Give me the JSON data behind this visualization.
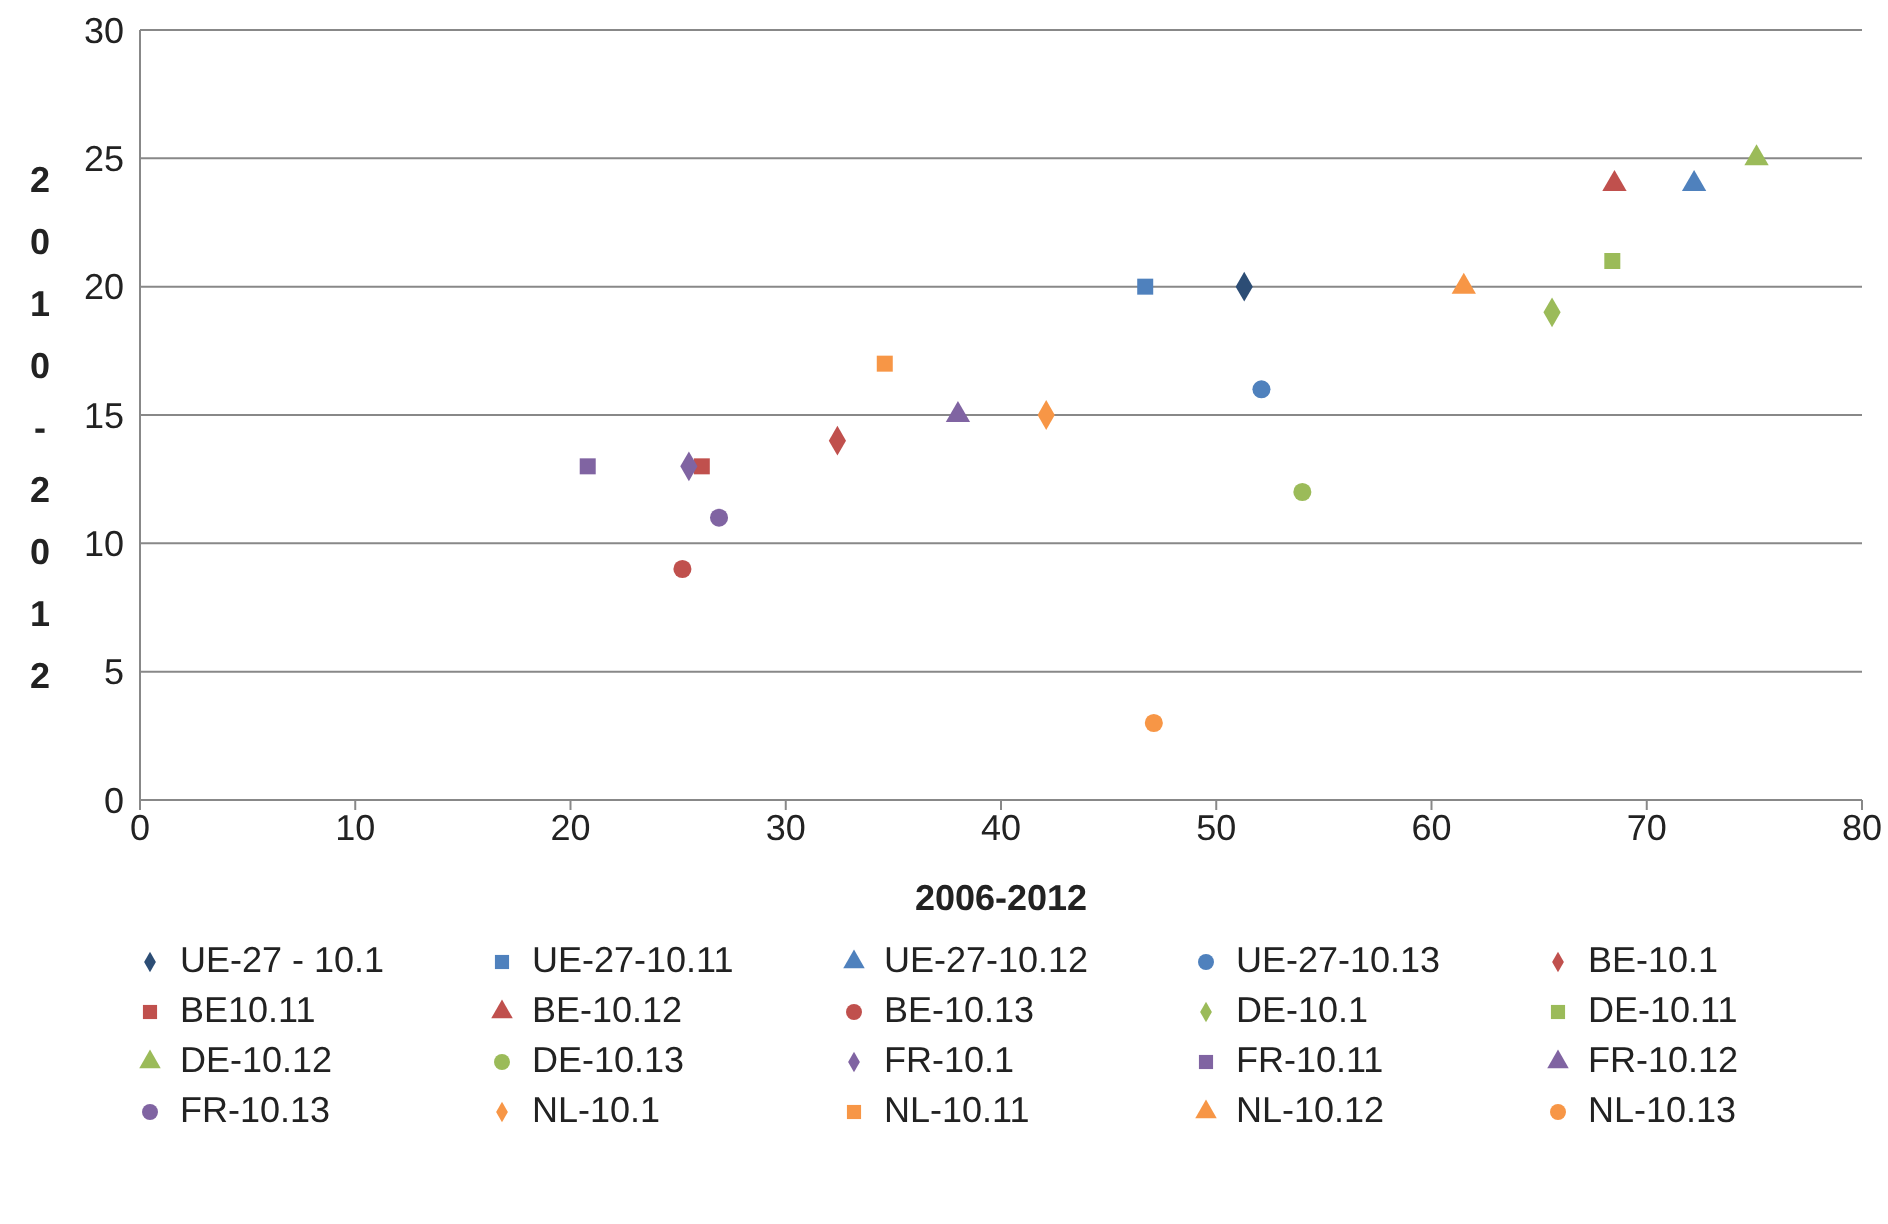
{
  "chart_data": {
    "type": "scatter",
    "xlabel": "2006-2012",
    "ylabel": "2010-2012",
    "xlim": [
      0,
      80
    ],
    "xticks": [
      0,
      10,
      20,
      30,
      40,
      50,
      60,
      70,
      80
    ],
    "ylim": [
      0,
      30
    ],
    "yticks": [
      0,
      5,
      10,
      15,
      20,
      25,
      30
    ],
    "grid": "y",
    "legend": "bottom",
    "series": [
      {
        "name": "UE-27 - 10.1",
        "color": "#2c4d75",
        "marker": "diamond",
        "x": [
          51.3
        ],
        "values": [
          20
        ]
      },
      {
        "name": "UE-27-10.11",
        "color": "#4f81bd",
        "marker": "square",
        "x": [
          46.7
        ],
        "values": [
          20
        ]
      },
      {
        "name": "UE-27-10.12",
        "color": "#4f81bd",
        "marker": "triangle",
        "x": [
          72.2
        ],
        "values": [
          24
        ]
      },
      {
        "name": "UE-27-10.13",
        "color": "#4f81bd",
        "marker": "circle",
        "x": [
          52.1
        ],
        "values": [
          16
        ]
      },
      {
        "name": "BE-10.1",
        "color": "#c0504d",
        "marker": "diamond",
        "x": [
          32.4
        ],
        "values": [
          14
        ]
      },
      {
        "name": "BE10.11",
        "color": "#c0504d",
        "marker": "square",
        "x": [
          26.1
        ],
        "values": [
          13
        ]
      },
      {
        "name": "BE-10.12",
        "color": "#c0504d",
        "marker": "triangle",
        "x": [
          68.5
        ],
        "values": [
          24
        ]
      },
      {
        "name": "BE-10.13",
        "color": "#c0504d",
        "marker": "circle",
        "x": [
          25.2
        ],
        "values": [
          9
        ]
      },
      {
        "name": "DE-10.1",
        "color": "#9bbb59",
        "marker": "diamond",
        "x": [
          65.6
        ],
        "values": [
          19
        ]
      },
      {
        "name": "DE-10.11",
        "color": "#9bbb59",
        "marker": "square",
        "x": [
          68.4
        ],
        "values": [
          21
        ]
      },
      {
        "name": "DE-10.12",
        "color": "#9bbb59",
        "marker": "triangle",
        "x": [
          75.1
        ],
        "values": [
          25
        ]
      },
      {
        "name": "DE-10.13",
        "color": "#9bbb59",
        "marker": "circle",
        "x": [
          54.0
        ],
        "values": [
          12
        ]
      },
      {
        "name": "FR-10.1",
        "color": "#8064a2",
        "marker": "diamond",
        "x": [
          25.5
        ],
        "values": [
          13
        ]
      },
      {
        "name": "FR-10.11",
        "color": "#8064a2",
        "marker": "square",
        "x": [
          20.8
        ],
        "values": [
          13
        ]
      },
      {
        "name": "FR-10.12",
        "color": "#8064a2",
        "marker": "triangle",
        "x": [
          38.0
        ],
        "values": [
          15
        ]
      },
      {
        "name": "FR-10.13",
        "color": "#8064a2",
        "marker": "circle",
        "x": [
          26.9
        ],
        "values": [
          11
        ]
      },
      {
        "name": "NL-10.1",
        "color": "#f79646",
        "marker": "diamond",
        "x": [
          42.1
        ],
        "values": [
          15
        ]
      },
      {
        "name": "NL-10.11",
        "color": "#f79646",
        "marker": "square",
        "x": [
          34.6
        ],
        "values": [
          17
        ]
      },
      {
        "name": "NL-10.12",
        "color": "#f79646",
        "marker": "triangle",
        "x": [
          61.5
        ],
        "values": [
          20
        ]
      },
      {
        "name": "NL-10.13",
        "color": "#f79646",
        "marker": "circle",
        "x": [
          47.1
        ],
        "values": [
          3
        ]
      }
    ]
  }
}
